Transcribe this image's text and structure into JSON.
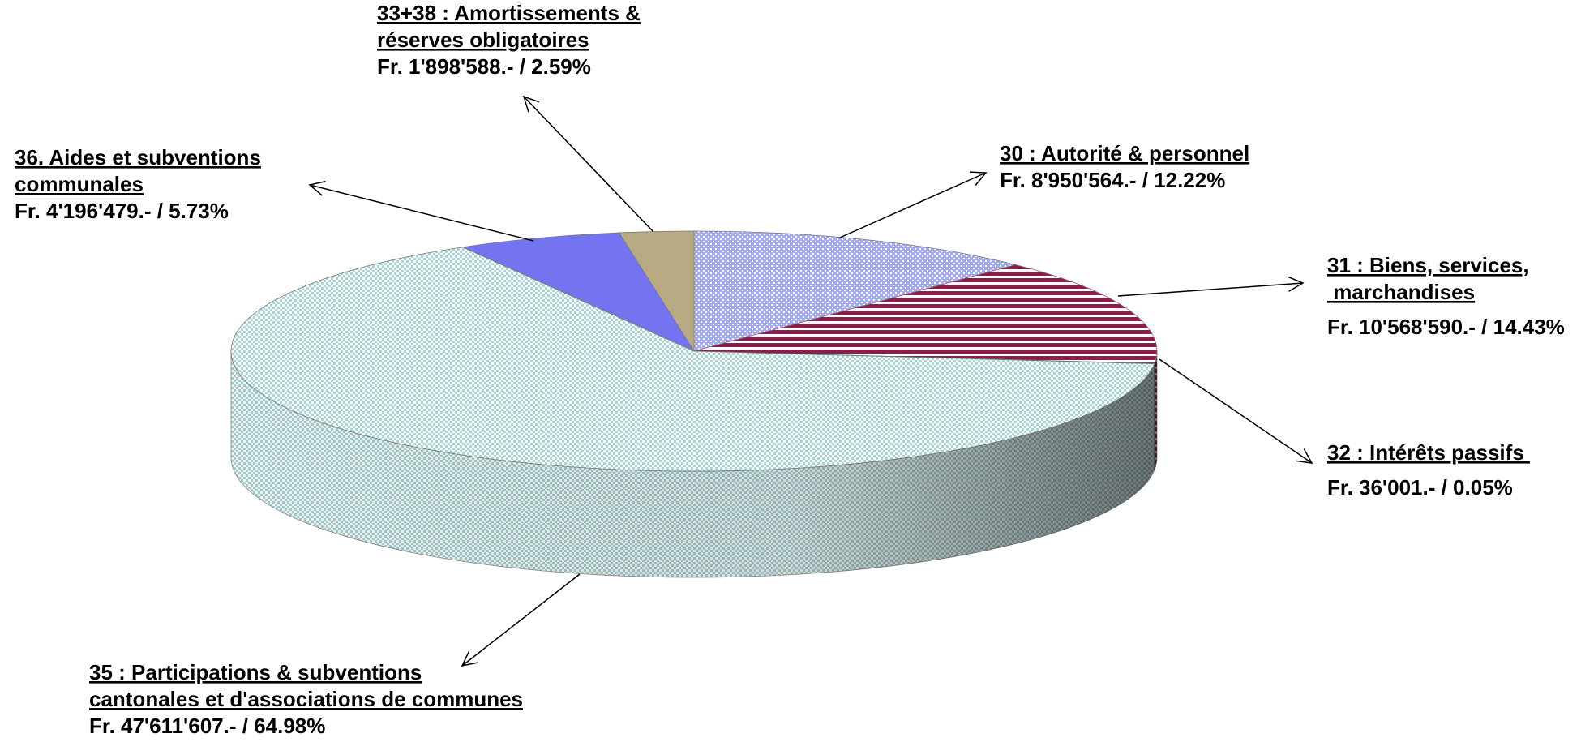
{
  "chart_data": {
    "type": "pie",
    "categories": [
      [
        "30 : Autorité & personnel"
      ],
      [
        "31 : Biens, services,",
        " marchandises"
      ],
      [
        "32 : Intérêts passifs "
      ],
      [
        "35 : Participations & subventions",
        "cantonales et d'associations de communes"
      ],
      [
        "36. Aides et subventions",
        "communales"
      ],
      [
        "33+38 : Amortissements &",
        "réserves obligatoires"
      ]
    ],
    "values": [
      12.22,
      14.43,
      0.05,
      64.98,
      5.73,
      2.59
    ],
    "value_labels": [
      "Fr. 8'950'564.- / 12.22%",
      "Fr. 10'568'590.- / 14.43%",
      "Fr. 36'001.- / 0.05%",
      "Fr. 47'611'607.- / 64.98%",
      "Fr. 4'196'479.- / 5.73%",
      "Fr. 1'898'588.- / 2.59%"
    ],
    "colors": [
      "#a3aaf2",
      "#8a1d4c",
      "#c0c0c0",
      "#a6d6d6",
      "#7474f0",
      "#b8ab83"
    ],
    "patterns": [
      "dots",
      "stripes",
      null,
      "checks",
      null,
      null
    ]
  }
}
